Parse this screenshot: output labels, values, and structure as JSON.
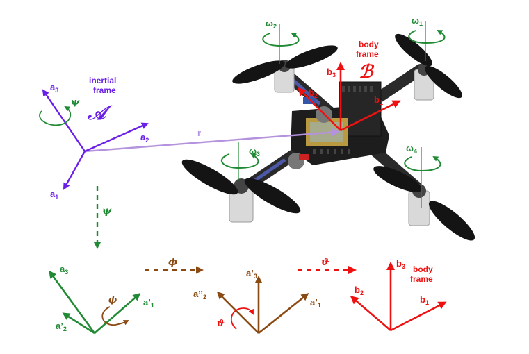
{
  "colors": {
    "inertial": "#6a1fe8",
    "body": "#ee1111",
    "green": "#218a34",
    "brown": "#8a4a12",
    "position": "#b592dd"
  },
  "inertial": {
    "label_line1": "inertial",
    "label_line2": "frame",
    "symbol": "𝒜",
    "a1": "a",
    "a1_sub": "1",
    "a2": "a",
    "a2_sub": "2",
    "a3": "a",
    "a3_sub": "3",
    "psi": "ψ"
  },
  "position_vector": "r",
  "body": {
    "label_line1": "body",
    "label_line2": "frame",
    "symbol": "ℬ",
    "b1": "b",
    "b1_sub": "1",
    "b2": "b",
    "b2_sub": "2",
    "b3": "b",
    "b3_sub": "3"
  },
  "rotors": [
    {
      "w": "ω",
      "sub": "1"
    },
    {
      "w": "ω",
      "sub": "2"
    },
    {
      "w": "ω",
      "sub": "3"
    },
    {
      "w": "ω",
      "sub": "4"
    }
  ],
  "sequence": {
    "psi": "ψ",
    "phi": "ϕ",
    "theta": "ϑ",
    "frame1": {
      "a3": "a",
      "a3_sub": "3",
      "a1p": "a’",
      "a1p_sub": "1",
      "a2p": "a’",
      "a2p_sub": "2",
      "phi": "ϕ"
    },
    "frame2": {
      "a3p": "a’",
      "a3p_sub": "3",
      "a2pp": "a’’",
      "a2pp_sub": "2",
      "a1p": "a’",
      "a1p_sub": "1",
      "theta": "ϑ"
    },
    "frame3": {
      "b3": "b",
      "b3_sub": "3",
      "b2": "b",
      "b2_sub": "2",
      "b1": "b",
      "b1_sub": "1",
      "label_line1": "body",
      "label_line2": "frame"
    }
  }
}
